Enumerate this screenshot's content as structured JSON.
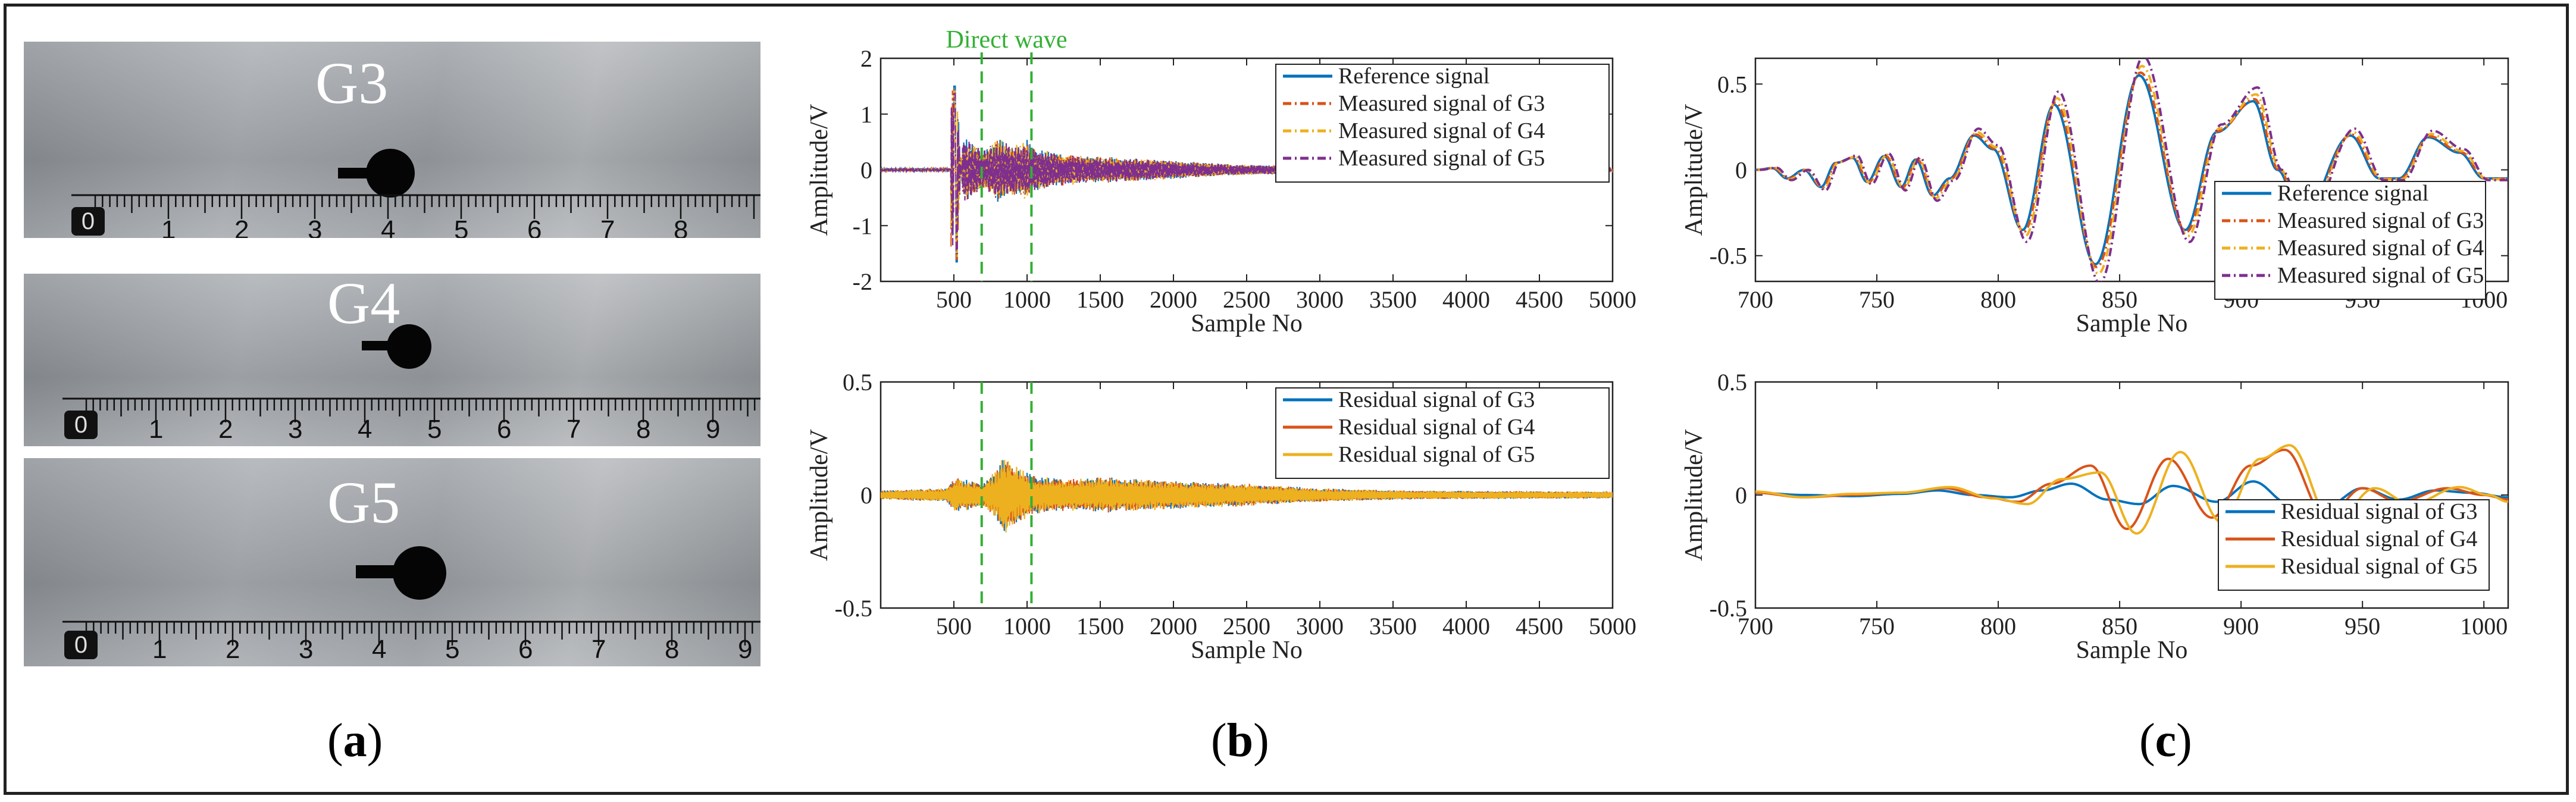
{
  "captions": [
    "a",
    "b",
    "c"
  ],
  "photo_panel": {
    "labels": [
      "G3",
      "G4",
      "G5"
    ],
    "ruler_numbers": [
      [
        "0",
        "1",
        "2",
        "3",
        "4",
        "5",
        "6",
        "7",
        "8"
      ],
      [
        "0",
        "1",
        "2",
        "3",
        "4",
        "5",
        "6",
        "7",
        "8",
        "9"
      ],
      [
        "0",
        "1",
        "2",
        "3",
        "4",
        "5",
        "6",
        "7",
        "8",
        "9"
      ]
    ]
  },
  "chart_data": [
    {
      "id": "b-top",
      "type": "line",
      "xlabel": "Sample No",
      "ylabel": "Amplitude/V",
      "xlim": [
        0,
        5000
      ],
      "ylim": [
        -2,
        2
      ],
      "xticks": [
        500,
        1000,
        1500,
        2000,
        2500,
        3000,
        3500,
        4000,
        4500,
        5000
      ],
      "yticks": [
        -2,
        -1,
        0,
        1,
        2
      ],
      "annotation": {
        "text": "Direct wave",
        "x_range": [
          690,
          1030
        ],
        "color": "#33b033"
      },
      "legend": "top-right",
      "series": [
        {
          "name": "Reference signal",
          "color": "#0072BD",
          "dash": "solid"
        },
        {
          "name": "Measured signal of G3",
          "color": "#D95319",
          "dash": "dashdot"
        },
        {
          "name": "Measured signal of G4",
          "color": "#EDB120",
          "dash": "dashdot"
        },
        {
          "name": "Measured signal of G5",
          "color": "#7E2F8E",
          "dash": "dashdot"
        }
      ],
      "signal": {
        "peaks": [
          [
            505,
            1.5
          ],
          [
            520,
            -1.65
          ],
          [
            560,
            0.6
          ],
          [
            700,
            0.35
          ],
          [
            760,
            0.45
          ],
          [
            800,
            0.6
          ],
          [
            860,
            0.5
          ],
          [
            950,
            0.45
          ],
          [
            1000,
            0.55
          ],
          [
            1040,
            0.4
          ],
          [
            1200,
            0.3
          ],
          [
            1400,
            0.25
          ],
          [
            1800,
            0.2
          ],
          [
            2400,
            0.1
          ],
          [
            3500,
            0.05
          ],
          [
            5000,
            0.02
          ]
        ]
      }
    },
    {
      "id": "b-bottom",
      "type": "line",
      "xlabel": "Sample No",
      "ylabel": "Amplitude/V",
      "xlim": [
        0,
        5000
      ],
      "ylim": [
        -0.5,
        0.5
      ],
      "xticks": [
        500,
        1000,
        1500,
        2000,
        2500,
        3000,
        3500,
        4000,
        4500,
        5000
      ],
      "yticks": [
        -0.5,
        0,
        0.5
      ],
      "annotation": {
        "text": "",
        "x_range": [
          690,
          1030
        ],
        "color": "#33b033"
      },
      "legend": "top-right",
      "series": [
        {
          "name": "Residual signal of G3",
          "color": "#0072BD",
          "dash": "solid"
        },
        {
          "name": "Residual signal of G4",
          "color": "#D95319",
          "dash": "solid"
        },
        {
          "name": "Residual signal of G5",
          "color": "#EDB120",
          "dash": "solid"
        }
      ],
      "signal": {
        "peaks": [
          [
            0,
            0.02
          ],
          [
            450,
            0.03
          ],
          [
            510,
            0.08
          ],
          [
            700,
            0.05
          ],
          [
            800,
            0.12
          ],
          [
            860,
            0.2
          ],
          [
            900,
            0.14
          ],
          [
            1000,
            0.1
          ],
          [
            1100,
            0.08
          ],
          [
            1300,
            0.07
          ],
          [
            1500,
            0.08
          ],
          [
            1800,
            0.07
          ],
          [
            2100,
            0.06
          ],
          [
            2500,
            0.05
          ],
          [
            3000,
            0.03
          ],
          [
            3600,
            0.02
          ],
          [
            5000,
            0.015
          ]
        ]
      }
    },
    {
      "id": "c-top",
      "type": "line",
      "xlabel": "Sample No",
      "ylabel": "Amplitude/V",
      "xlim": [
        700,
        1010
      ],
      "ylim": [
        -0.65,
        0.65
      ],
      "xticks": [
        700,
        750,
        800,
        850,
        900,
        950,
        1000
      ],
      "yticks": [
        -0.5,
        0,
        0.5
      ],
      "legend": "bottom-right",
      "series": [
        {
          "name": "Reference signal",
          "color": "#0072BD",
          "dash": "solid"
        },
        {
          "name": "Measured signal of G3",
          "color": "#D95319",
          "dash": "dashdot"
        },
        {
          "name": "Measured signal of G4",
          "color": "#EDB120",
          "dash": "dashdot"
        },
        {
          "name": "Measured signal of G5",
          "color": "#7E2F8E",
          "dash": "dashdot"
        }
      ],
      "signal": {
        "points": [
          [
            700,
            0
          ],
          [
            707,
            0.01
          ],
          [
            713,
            -0.05
          ],
          [
            720,
            0
          ],
          [
            727,
            -0.1
          ],
          [
            733,
            0.04
          ],
          [
            740,
            0.07
          ],
          [
            746,
            -0.07
          ],
          [
            753,
            0.08
          ],
          [
            760,
            -0.1
          ],
          [
            766,
            0.06
          ],
          [
            773,
            -0.15
          ],
          [
            780,
            -0.05
          ],
          [
            790,
            0.2
          ],
          [
            798,
            0.12
          ],
          [
            810,
            -0.35
          ],
          [
            823,
            0.38
          ],
          [
            840,
            -0.55
          ],
          [
            858,
            0.55
          ],
          [
            877,
            -0.35
          ],
          [
            890,
            0.22
          ],
          [
            905,
            0.4
          ],
          [
            915,
            0
          ],
          [
            925,
            -0.28
          ],
          [
            945,
            0.2
          ],
          [
            957,
            -0.05
          ],
          [
            965,
            -0.05
          ],
          [
            977,
            0.19
          ],
          [
            990,
            0.1
          ],
          [
            1000,
            -0.05
          ],
          [
            1010,
            -0.05
          ]
        ]
      },
      "gain": [
        1.0,
        1.03,
        1.1,
        1.2
      ]
    },
    {
      "id": "c-bottom",
      "type": "line",
      "xlabel": "Sample No",
      "ylabel": "Amplitude/V",
      "xlim": [
        700,
        1010
      ],
      "ylim": [
        -0.5,
        0.5
      ],
      "xticks": [
        700,
        750,
        800,
        850,
        900,
        950,
        1000
      ],
      "yticks": [
        -0.5,
        0,
        0.5
      ],
      "legend": "bottom-right",
      "series": [
        {
          "name": "Residual signal of G3",
          "color": "#0072BD",
          "dash": "solid"
        },
        {
          "name": "Residual signal of G4",
          "color": "#D95319",
          "dash": "solid"
        },
        {
          "name": "Residual signal of G5",
          "color": "#EDB120",
          "dash": "solid"
        }
      ],
      "curves": [
        [
          [
            700,
            0.01
          ],
          [
            720,
            0
          ],
          [
            740,
            -0.005
          ],
          [
            760,
            0.005
          ],
          [
            775,
            0.02
          ],
          [
            790,
            0
          ],
          [
            805,
            -0.01
          ],
          [
            818,
            0.02
          ],
          [
            830,
            0.05
          ],
          [
            845,
            -0.02
          ],
          [
            858,
            -0.04
          ],
          [
            872,
            0.04
          ],
          [
            890,
            -0.03
          ],
          [
            905,
            0.06
          ],
          [
            920,
            -0.04
          ],
          [
            935,
            -0.05
          ],
          [
            950,
            0.03
          ],
          [
            965,
            -0.02
          ],
          [
            980,
            0.02
          ],
          [
            995,
            0.01
          ],
          [
            1010,
            -0.01
          ]
        ],
        [
          [
            700,
            0.01
          ],
          [
            720,
            -0.01
          ],
          [
            740,
            0
          ],
          [
            760,
            0.01
          ],
          [
            778,
            0.03
          ],
          [
            795,
            -0.01
          ],
          [
            808,
            -0.03
          ],
          [
            822,
            0.05
          ],
          [
            838,
            0.13
          ],
          [
            853,
            -0.15
          ],
          [
            870,
            0.16
          ],
          [
            888,
            -0.1
          ],
          [
            904,
            0.13
          ],
          [
            918,
            0.2
          ],
          [
            935,
            -0.1
          ],
          [
            950,
            0.03
          ],
          [
            965,
            -0.03
          ],
          [
            985,
            0.03
          ],
          [
            1000,
            0
          ],
          [
            1010,
            -0.02
          ]
        ],
        [
          [
            700,
            0.015
          ],
          [
            720,
            -0.01
          ],
          [
            740,
            0.005
          ],
          [
            760,
            0.01
          ],
          [
            780,
            0.035
          ],
          [
            798,
            -0.015
          ],
          [
            812,
            -0.04
          ],
          [
            826,
            0.07
          ],
          [
            842,
            0.1
          ],
          [
            857,
            -0.17
          ],
          [
            875,
            0.19
          ],
          [
            892,
            -0.12
          ],
          [
            908,
            0.16
          ],
          [
            920,
            0.22
          ],
          [
            938,
            -0.13
          ],
          [
            955,
            0.03
          ],
          [
            970,
            -0.04
          ],
          [
            990,
            0.035
          ],
          [
            1002,
            0
          ],
          [
            1010,
            -0.03
          ]
        ]
      ]
    }
  ]
}
